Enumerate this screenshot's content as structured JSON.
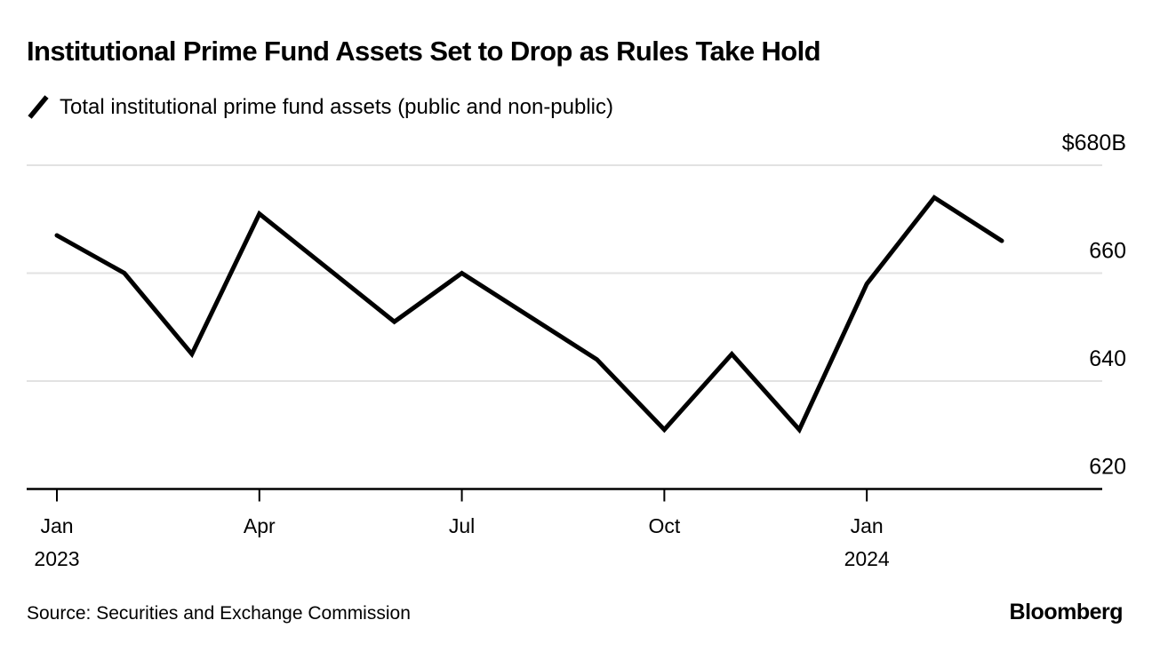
{
  "title": "Institutional Prime Fund Assets Set to Drop as Rules Take Hold",
  "legend": {
    "label": "Total institutional prime fund assets (public and non-public)"
  },
  "footer": {
    "source": "Source: Securities and Exchange Commission",
    "brand": "Bloomberg"
  },
  "colors": {
    "line": "#000000",
    "grid": "#e2e2e2",
    "axis": "#000000",
    "text": "#000000"
  },
  "chart_data": {
    "type": "line",
    "title": "Institutional Prime Fund Assets Set to Drop as Rules Take Hold",
    "unit": "$B",
    "x": [
      "Jan 2023",
      "Feb 2023",
      "Mar 2023",
      "Apr 2023",
      "May 2023",
      "Jun 2023",
      "Jul 2023",
      "Aug 2023",
      "Sep 2023",
      "Oct 2023",
      "Nov 2023",
      "Dec 2023",
      "Jan 2024",
      "Feb 2024",
      "Mar 2024"
    ],
    "series": [
      {
        "name": "Total institutional prime fund assets (public and non-public)",
        "values": [
          667,
          660,
          645,
          671,
          661,
          651,
          660,
          652,
          644,
          631,
          645,
          631,
          658,
          674,
          666
        ]
      }
    ],
    "ylim": [
      620,
      680
    ],
    "y_ticks": [
      {
        "value": 680,
        "label": "$680B"
      },
      {
        "value": 660,
        "label": "660"
      },
      {
        "value": 640,
        "label": "640"
      },
      {
        "value": 620,
        "label": "620"
      }
    ],
    "x_ticks": [
      {
        "index": 0,
        "label": "Jan",
        "sublabel": "2023"
      },
      {
        "index": 3,
        "label": "Apr"
      },
      {
        "index": 6,
        "label": "Jul"
      },
      {
        "index": 9,
        "label": "Oct"
      },
      {
        "index": 12,
        "label": "Jan",
        "sublabel": "2024"
      }
    ],
    "grid": true,
    "legend_position": "top-left"
  }
}
